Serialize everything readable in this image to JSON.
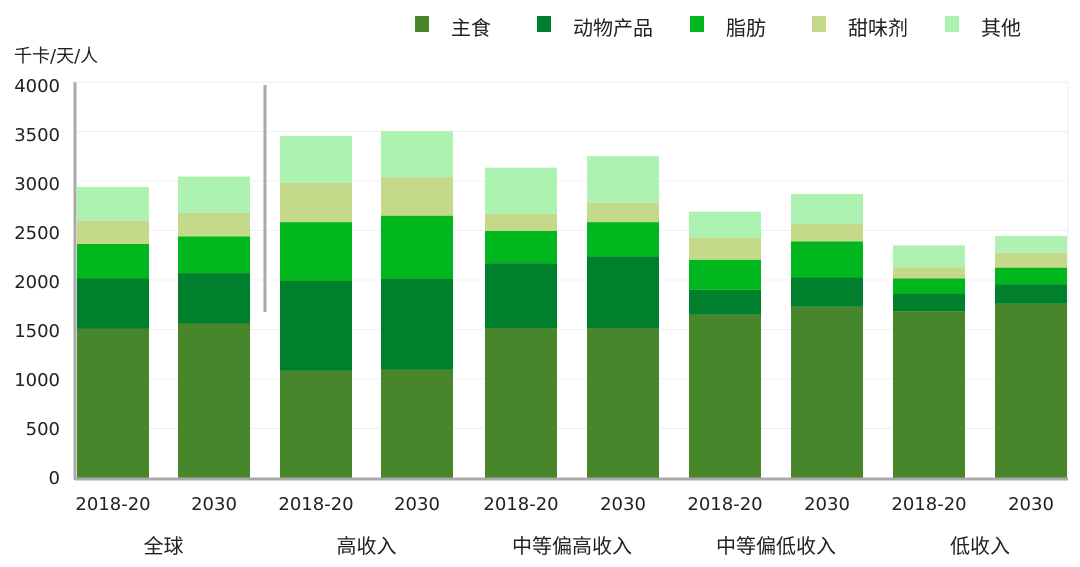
{
  "chart_data": {
    "type": "bar",
    "stacked": true,
    "ylabel": "千卡/天/人",
    "ylim": [
      0,
      4000
    ],
    "yticks": [
      0,
      500,
      1000,
      1500,
      2000,
      2500,
      3000,
      3500,
      4000
    ],
    "grid": true,
    "legend_position": "top-right",
    "categories": [
      "2018-20",
      "2030",
      "2018-20",
      "2030",
      "2018-20",
      "2030",
      "2018-20",
      "2030",
      "2018-20",
      "2030"
    ],
    "groups": [
      {
        "label": "全球",
        "span": [
          0,
          1
        ]
      },
      {
        "label": "高收入",
        "span": [
          2,
          3
        ]
      },
      {
        "label": "中等偏高收入",
        "span": [
          4,
          5
        ]
      },
      {
        "label": "中等偏低收入",
        "span": [
          6,
          7
        ]
      },
      {
        "label": "低收入",
        "span": [
          8,
          9
        ]
      }
    ],
    "series": [
      {
        "name": "主食",
        "color": "#47862a",
        "values": [
          1510,
          1560,
          1085,
          1095,
          1515,
          1515,
          1650,
          1730,
          1685,
          1760
        ]
      },
      {
        "name": "动物产品",
        "color": "#007f2d",
        "values": [
          505,
          510,
          905,
          915,
          655,
          725,
          250,
          295,
          180,
          195
        ]
      },
      {
        "name": "脂肪",
        "color": "#00b81d",
        "values": [
          350,
          370,
          595,
          640,
          325,
          345,
          305,
          365,
          150,
          170
        ]
      },
      {
        "name": "甜味剂",
        "color": "#c5d98b",
        "values": [
          235,
          240,
          395,
          385,
          175,
          195,
          220,
          175,
          115,
          150
        ]
      },
      {
        "name": "其他",
        "color": "#adf2b0",
        "values": [
          340,
          365,
          475,
          470,
          465,
          470,
          265,
          305,
          220,
          170
        ]
      }
    ]
  }
}
